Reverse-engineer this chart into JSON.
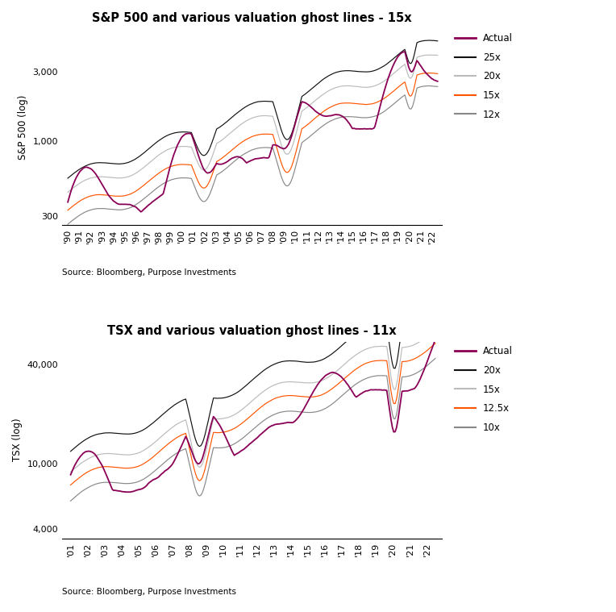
{
  "title1": "S&P 500 and various valuation ghost lines - 15x",
  "title2": "TSX and various valuation ghost lines - 11x",
  "ylabel1": "S&P 500 (log)",
  "ylabel2": "TSX (log)",
  "source": "Source: Bloomberg, Purpose Investments",
  "color_actual": "#8B0057",
  "color_high": "#111111",
  "color_mid_high": "#BBBBBB",
  "color_mid": "#FF5500",
  "color_low": "#888888",
  "legend1": [
    "Actual",
    "25x",
    "20x",
    "15x",
    "12x"
  ],
  "legend2": [
    "Actual",
    "20x",
    "15x",
    "12.5x",
    "10x"
  ],
  "sp500_yticks": [
    300,
    1000,
    3000
  ],
  "tsx_yticks": [
    4000,
    10000,
    40000
  ],
  "sp500_ylim": [
    260,
    6000
  ],
  "tsx_ylim": [
    3500,
    55000
  ]
}
